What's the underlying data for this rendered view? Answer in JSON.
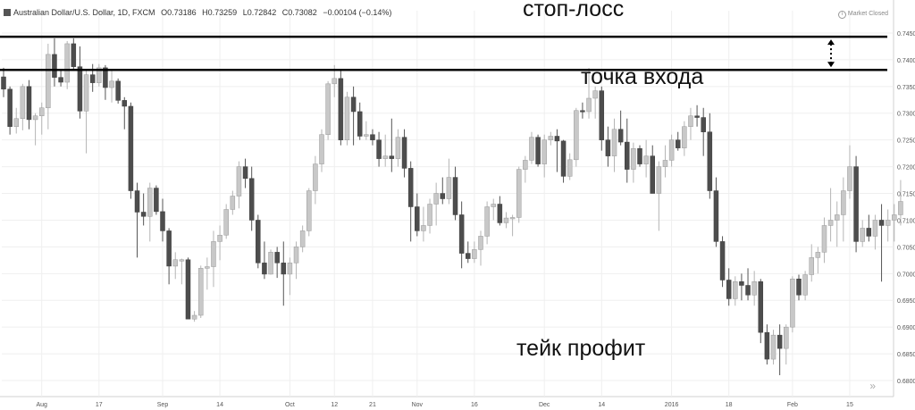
{
  "header": {
    "symbol": "Australian Dollar/U.S. Dollar, 1D, FXCM",
    "open": "O0.73186",
    "high": "H0.73259",
    "low": "L0.72842",
    "close": "C0.73082",
    "change": "−0.00104 (−0.14%)",
    "market_status": "Market Closed"
  },
  "annotations": {
    "stop_loss": "стоп-лосс",
    "entry": "точка входа",
    "take_profit": "тейк профит"
  },
  "chart_data": {
    "type": "candlestick",
    "ylim": [
      0.678,
      0.7475
    ],
    "y_ticks": [
      "0.74500",
      "0.74000",
      "0.73500",
      "0.73000",
      "0.72500",
      "0.72000",
      "0.71500",
      "0.71000",
      "0.70500",
      "0.70000",
      "0.69500",
      "0.69000",
      "0.68500",
      "0.68000"
    ],
    "x_ticks": [
      "Aug",
      "17",
      "Sep",
      "14",
      "Oct",
      "12",
      "21",
      "Nov",
      "16",
      "Dec",
      "14",
      "2016",
      "18",
      "Feb",
      "15"
    ],
    "x_tick_index": [
      6,
      15,
      25,
      34,
      45,
      52,
      58,
      65,
      74,
      85,
      94,
      105,
      114,
      124,
      133
    ],
    "horizontal_lines": {
      "stop_loss": 0.7443,
      "entry": 0.7381
    },
    "up_color": "#c8c8c8",
    "down_color": "#4d4d4d",
    "candles": [
      [
        0.7368,
        0.7385,
        0.733,
        0.7345
      ],
      [
        0.7345,
        0.735,
        0.726,
        0.7275
      ],
      [
        0.7275,
        0.731,
        0.7262,
        0.729
      ],
      [
        0.729,
        0.7355,
        0.7268,
        0.735
      ],
      [
        0.735,
        0.7362,
        0.727,
        0.7288
      ],
      [
        0.7288,
        0.73,
        0.724,
        0.7295
      ],
      [
        0.7295,
        0.732,
        0.726,
        0.731
      ],
      [
        0.731,
        0.743,
        0.727,
        0.741
      ],
      [
        0.741,
        0.744,
        0.735,
        0.7367
      ],
      [
        0.7367,
        0.738,
        0.735,
        0.7358
      ],
      [
        0.7358,
        0.7435,
        0.7345,
        0.743
      ],
      [
        0.743,
        0.744,
        0.738,
        0.7387
      ],
      [
        0.7387,
        0.7425,
        0.729,
        0.7304
      ],
      [
        0.7304,
        0.738,
        0.7225,
        0.7372
      ],
      [
        0.7372,
        0.7392,
        0.734,
        0.7357
      ],
      [
        0.7357,
        0.7392,
        0.735,
        0.7385
      ],
      [
        0.7385,
        0.739,
        0.7325,
        0.7348
      ],
      [
        0.7348,
        0.738,
        0.732,
        0.736
      ],
      [
        0.736,
        0.7365,
        0.7318,
        0.7324
      ],
      [
        0.7324,
        0.733,
        0.727,
        0.7313
      ],
      [
        0.7313,
        0.732,
        0.714,
        0.7155
      ],
      [
        0.7155,
        0.717,
        0.703,
        0.7115
      ],
      [
        0.7115,
        0.715,
        0.709,
        0.7107
      ],
      [
        0.7107,
        0.717,
        0.706,
        0.716
      ],
      [
        0.716,
        0.7165,
        0.711,
        0.7116
      ],
      [
        0.7116,
        0.714,
        0.706,
        0.708
      ],
      [
        0.708,
        0.7085,
        0.698,
        0.7014
      ],
      [
        0.7014,
        0.704,
        0.699,
        0.7026
      ],
      [
        0.7026,
        0.7028,
        0.698,
        0.7026
      ],
      [
        0.7026,
        0.703,
        0.6915,
        0.6915
      ],
      [
        0.6915,
        0.693,
        0.691,
        0.6922
      ],
      [
        0.6922,
        0.7015,
        0.6917,
        0.701
      ],
      [
        0.701,
        0.703,
        0.697,
        0.7013
      ],
      [
        0.7013,
        0.708,
        0.6975,
        0.706
      ],
      [
        0.706,
        0.709,
        0.7025,
        0.7072
      ],
      [
        0.7072,
        0.713,
        0.7065,
        0.712
      ],
      [
        0.712,
        0.7155,
        0.711,
        0.7145
      ],
      [
        0.7145,
        0.721,
        0.7122,
        0.72
      ],
      [
        0.72,
        0.7215,
        0.716,
        0.7178
      ],
      [
        0.7178,
        0.72,
        0.708,
        0.71
      ],
      [
        0.71,
        0.711,
        0.701,
        0.702
      ],
      [
        0.702,
        0.706,
        0.699,
        0.6999
      ],
      [
        0.6999,
        0.7045,
        0.6998,
        0.704
      ],
      [
        0.704,
        0.705,
        0.6992,
        0.702
      ],
      [
        0.702,
        0.706,
        0.694,
        0.6999
      ],
      [
        0.6999,
        0.703,
        0.696,
        0.702
      ],
      [
        0.702,
        0.706,
        0.699,
        0.705
      ],
      [
        0.705,
        0.709,
        0.704,
        0.708
      ],
      [
        0.708,
        0.716,
        0.707,
        0.7155
      ],
      [
        0.7155,
        0.722,
        0.713,
        0.7205
      ],
      [
        0.7205,
        0.727,
        0.719,
        0.726
      ],
      [
        0.726,
        0.736,
        0.725,
        0.7355
      ],
      [
        0.7355,
        0.739,
        0.733,
        0.7365
      ],
      [
        0.7365,
        0.738,
        0.724,
        0.725
      ],
      [
        0.725,
        0.734,
        0.724,
        0.733
      ],
      [
        0.733,
        0.735,
        0.724,
        0.7303
      ],
      [
        0.7303,
        0.732,
        0.725,
        0.7257
      ],
      [
        0.7257,
        0.7285,
        0.725,
        0.726
      ],
      [
        0.726,
        0.727,
        0.724,
        0.725
      ],
      [
        0.725,
        0.7265,
        0.72,
        0.7215
      ],
      [
        0.7215,
        0.726,
        0.72,
        0.722
      ],
      [
        0.722,
        0.729,
        0.719,
        0.7215
      ],
      [
        0.7215,
        0.727,
        0.72,
        0.7255
      ],
      [
        0.7255,
        0.727,
        0.718,
        0.7197
      ],
      [
        0.7197,
        0.721,
        0.706,
        0.7125
      ],
      [
        0.7125,
        0.715,
        0.707,
        0.708
      ],
      [
        0.708,
        0.7125,
        0.706,
        0.709
      ],
      [
        0.709,
        0.714,
        0.7075,
        0.713
      ],
      [
        0.713,
        0.717,
        0.709,
        0.715
      ],
      [
        0.715,
        0.718,
        0.713,
        0.714
      ],
      [
        0.714,
        0.7215,
        0.713,
        0.718
      ],
      [
        0.718,
        0.72,
        0.71,
        0.711
      ],
      [
        0.711,
        0.7135,
        0.701,
        0.7038
      ],
      [
        0.7038,
        0.706,
        0.702,
        0.7028
      ],
      [
        0.7028,
        0.706,
        0.702,
        0.7045
      ],
      [
        0.7045,
        0.708,
        0.7015,
        0.707
      ],
      [
        0.707,
        0.7135,
        0.7055,
        0.7125
      ],
      [
        0.7125,
        0.714,
        0.71,
        0.713
      ],
      [
        0.713,
        0.7145,
        0.709,
        0.7095
      ],
      [
        0.7095,
        0.7115,
        0.7085,
        0.7104
      ],
      [
        0.7104,
        0.711,
        0.707,
        0.7105
      ],
      [
        0.7105,
        0.72,
        0.7095,
        0.7195
      ],
      [
        0.7195,
        0.722,
        0.717,
        0.7212
      ],
      [
        0.7212,
        0.7265,
        0.7205,
        0.7255
      ],
      [
        0.7255,
        0.726,
        0.72,
        0.7205
      ],
      [
        0.7205,
        0.726,
        0.718,
        0.725
      ],
      [
        0.725,
        0.7265,
        0.724,
        0.7257
      ],
      [
        0.7257,
        0.727,
        0.719,
        0.7248
      ],
      [
        0.7248,
        0.725,
        0.717,
        0.7182
      ],
      [
        0.7182,
        0.7225,
        0.7175,
        0.7213
      ],
      [
        0.7213,
        0.731,
        0.72,
        0.7305
      ],
      [
        0.7305,
        0.732,
        0.729,
        0.7303
      ],
      [
        0.7303,
        0.7385,
        0.729,
        0.7328
      ],
      [
        0.7328,
        0.735,
        0.729,
        0.7342
      ],
      [
        0.7342,
        0.735,
        0.723,
        0.725
      ],
      [
        0.725,
        0.7275,
        0.72,
        0.722
      ],
      [
        0.722,
        0.729,
        0.719,
        0.727
      ],
      [
        0.727,
        0.7305,
        0.724,
        0.7246
      ],
      [
        0.7246,
        0.729,
        0.717,
        0.7195
      ],
      [
        0.7195,
        0.7245,
        0.717,
        0.7234
      ],
      [
        0.7234,
        0.724,
        0.72,
        0.7205
      ],
      [
        0.7205,
        0.725,
        0.718,
        0.722
      ],
      [
        0.722,
        0.724,
        0.715,
        0.715
      ],
      [
        0.715,
        0.721,
        0.708,
        0.72
      ],
      [
        0.72,
        0.724,
        0.718,
        0.7212
      ],
      [
        0.7212,
        0.726,
        0.72,
        0.725
      ],
      [
        0.725,
        0.7265,
        0.723,
        0.7235
      ],
      [
        0.7235,
        0.7285,
        0.722,
        0.7275
      ],
      [
        0.7275,
        0.731,
        0.725,
        0.7295
      ],
      [
        0.7295,
        0.7315,
        0.7275,
        0.7292
      ],
      [
        0.7292,
        0.731,
        0.722,
        0.7265
      ],
      [
        0.7265,
        0.73,
        0.714,
        0.7155
      ],
      [
        0.7155,
        0.718,
        0.705,
        0.706
      ],
      [
        0.706,
        0.707,
        0.6975,
        0.6988
      ],
      [
        0.6988,
        0.701,
        0.694,
        0.6953
      ],
      [
        0.6953,
        0.6995,
        0.694,
        0.6985
      ],
      [
        0.6985,
        0.7,
        0.695,
        0.6978
      ],
      [
        0.6978,
        0.701,
        0.695,
        0.696
      ],
      [
        0.696,
        0.7005,
        0.694,
        0.6985
      ],
      [
        0.6985,
        0.699,
        0.687,
        0.689
      ],
      [
        0.689,
        0.6905,
        0.683,
        0.684
      ],
      [
        0.684,
        0.6895,
        0.683,
        0.6885
      ],
      [
        0.6885,
        0.6905,
        0.681,
        0.686
      ],
      [
        0.686,
        0.6905,
        0.683,
        0.69
      ],
      [
        0.69,
        0.6995,
        0.689,
        0.699
      ],
      [
        0.699,
        0.6998,
        0.695,
        0.696
      ],
      [
        0.696,
        0.7005,
        0.695,
        0.6998
      ],
      [
        0.6998,
        0.7055,
        0.6985,
        0.703
      ],
      [
        0.703,
        0.705,
        0.7,
        0.704
      ],
      [
        0.704,
        0.7105,
        0.702,
        0.709
      ],
      [
        0.709,
        0.716,
        0.706,
        0.71
      ],
      [
        0.71,
        0.7135,
        0.705,
        0.711
      ],
      [
        0.711,
        0.718,
        0.706,
        0.7155
      ],
      [
        0.7155,
        0.724,
        0.714,
        0.72
      ],
      [
        0.72,
        0.722,
        0.704,
        0.706
      ],
      [
        0.706,
        0.71,
        0.705,
        0.7085
      ],
      [
        0.7085,
        0.711,
        0.706,
        0.707
      ],
      [
        0.707,
        0.711,
        0.7045,
        0.71
      ],
      [
        0.71,
        0.713,
        0.6985,
        0.709
      ],
      [
        0.709,
        0.712,
        0.706,
        0.71
      ],
      [
        0.71,
        0.713,
        0.706,
        0.711
      ],
      [
        0.711,
        0.7175,
        0.709,
        0.7135
      ]
    ]
  }
}
